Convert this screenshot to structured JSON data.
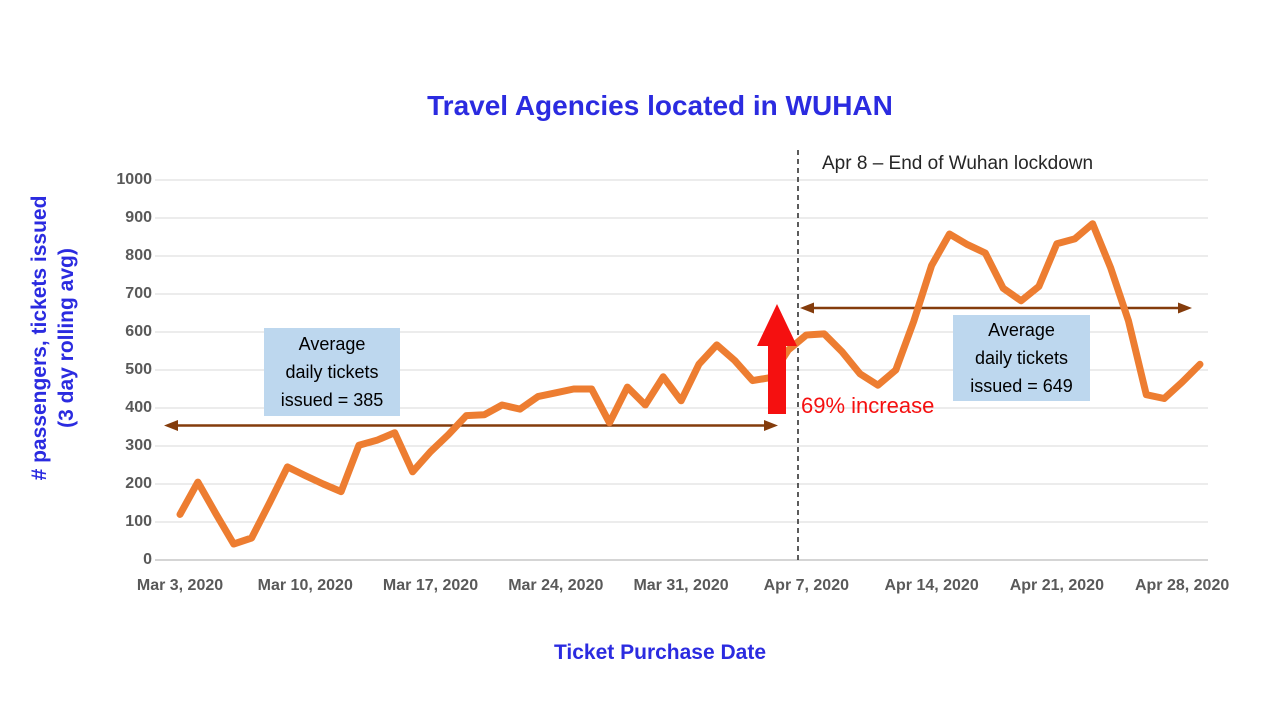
{
  "title": "Travel Agencies located in WUHAN",
  "x_axis_title": "Ticket Purchase Date",
  "y_axis_title": {
    "line1": "# passengers, tickets issued",
    "line2": "(3 day rolling avg)"
  },
  "annotations": {
    "lockdown_label": "Apr 8 – End of Wuhan lockdown",
    "increase_label": "69% increase",
    "before_box": [
      "Average",
      "daily tickets",
      "issued = 385"
    ],
    "after_box": [
      "Average",
      "daily tickets",
      "issued = 649"
    ]
  },
  "colors": {
    "line_orange": "#ED7D31",
    "title_blue": "#2B2BE0",
    "tick_label_gray": "#595959",
    "gridline_gray": "#D9D9D9",
    "axis_line_gray": "#ABABAB",
    "range_arrow_brown": "#843C0C",
    "highlight_red": "#F51010",
    "dashed_line_black": "#333333",
    "box_fill_blue": "#BDD7EE"
  },
  "chart_data": {
    "type": "line",
    "title": "Travel Agencies located in WUHAN",
    "xlabel": "Ticket Purchase Date",
    "ylabel": "# passengers, tickets issued (3 day rolling avg)",
    "ylim": [
      0,
      1000
    ],
    "y_ticks": [
      0,
      100,
      200,
      300,
      400,
      500,
      600,
      700,
      800,
      900,
      1000
    ],
    "x_tick_labels": [
      "Mar 3, 2020",
      "Mar 10, 2020",
      "Mar 17, 2020",
      "Mar 24, 2020",
      "Mar 31, 2020",
      "Apr 7, 2020",
      "Apr 14, 2020",
      "Apr 21, 2020",
      "Apr 28, 2020"
    ],
    "x_tick_every_days": 7,
    "grid": "horizontal",
    "legend": "none",
    "x": [
      "Mar 3",
      "Mar 4",
      "Mar 5",
      "Mar 6",
      "Mar 7",
      "Mar 8",
      "Mar 9",
      "Mar 10",
      "Mar 11",
      "Mar 12",
      "Mar 13",
      "Mar 14",
      "Mar 15",
      "Mar 16",
      "Mar 17",
      "Mar 18",
      "Mar 19",
      "Mar 20",
      "Mar 21",
      "Mar 22",
      "Mar 23",
      "Mar 24",
      "Mar 25",
      "Mar 26",
      "Mar 27",
      "Mar 28",
      "Mar 29",
      "Mar 30",
      "Mar 31",
      "Apr 1",
      "Apr 2",
      "Apr 3",
      "Apr 4",
      "Apr 5",
      "Apr 6",
      "Apr 7",
      "Apr 8",
      "Apr 9",
      "Apr 10",
      "Apr 11",
      "Apr 12",
      "Apr 13",
      "Apr 14",
      "Apr 15",
      "Apr 16",
      "Apr 17",
      "Apr 18",
      "Apr 19",
      "Apr 20",
      "Apr 21",
      "Apr 22",
      "Apr 23",
      "Apr 24",
      "Apr 25",
      "Apr 26",
      "Apr 27",
      "Apr 28",
      "Apr 29"
    ],
    "series": [
      {
        "name": "tickets issued (3 day rolling avg)",
        "values": [
          120,
          205,
          122,
          42,
          58,
          150,
          245,
          222,
          200,
          180,
          302,
          315,
          335,
          232,
          285,
          330,
          380,
          382,
          408,
          397,
          430,
          440,
          450,
          450,
          361,
          455,
          408,
          482,
          419,
          515,
          566,
          525,
          472,
          480,
          553,
          592,
          595,
          548,
          490,
          460,
          500,
          628,
          775,
          858,
          830,
          808,
          715,
          682,
          720,
          832,
          845,
          885,
          770,
          630,
          435,
          425,
          468,
          515
        ]
      }
    ],
    "annotations": {
      "vline_label": "Apr 8 – End of Wuhan lockdown",
      "before_avg": 385,
      "after_avg": 649,
      "increase_pct": "69% increase"
    }
  }
}
